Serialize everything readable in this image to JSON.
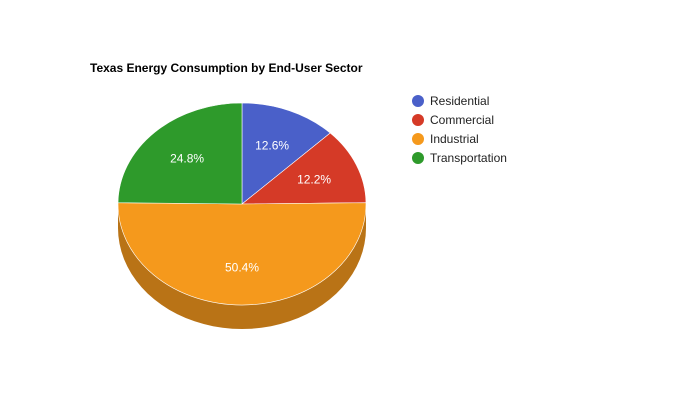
{
  "chart_data": {
    "type": "pie",
    "title": "Texas Energy Consumption by End-User Sector",
    "three_d": true,
    "legend_position": "right",
    "slices": [
      {
        "name": "Residential",
        "value": 12.6,
        "label": "12.6%",
        "color": "#4a60c9",
        "side_color": "#37489a"
      },
      {
        "name": "Commercial",
        "value": 12.2,
        "label": "12.2%",
        "color": "#d53a27",
        "side_color": "#a22a1a"
      },
      {
        "name": "Industrial",
        "value": 50.4,
        "label": "50.4%",
        "color": "#f5991c",
        "side_color": "#b97316"
      },
      {
        "name": "Transportation",
        "value": 24.8,
        "label": "24.8%",
        "color": "#2e9a2b",
        "side_color": "#22741f"
      }
    ]
  }
}
